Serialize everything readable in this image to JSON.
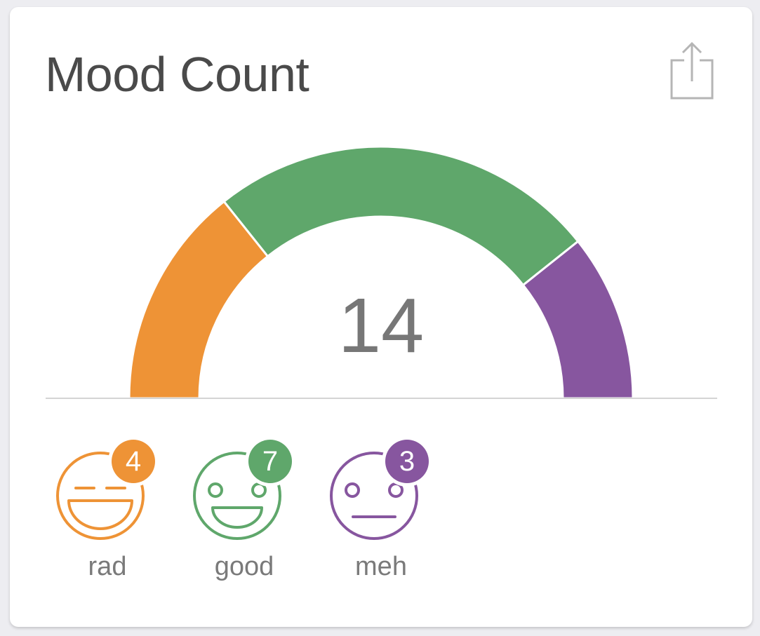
{
  "card": {
    "title": "Mood Count",
    "share_icon": "share-icon"
  },
  "chart_data": {
    "type": "gauge",
    "total": "14",
    "segments": [
      {
        "name": "rad",
        "value": 4,
        "color": "#ee9336"
      },
      {
        "name": "good",
        "value": 7,
        "color": "#5fa76b"
      },
      {
        "name": "meh",
        "value": 3,
        "color": "#87569f"
      }
    ]
  },
  "moods": [
    {
      "label": "rad",
      "count": "4",
      "color": "#ee9336",
      "icon": "rad-face-icon"
    },
    {
      "label": "good",
      "count": "7",
      "color": "#5fa76b",
      "icon": "good-face-icon"
    },
    {
      "label": "meh",
      "count": "3",
      "color": "#87569f",
      "icon": "meh-face-icon"
    }
  ],
  "colors": {
    "text_primary": "#4a4a4a",
    "text_secondary": "#7a7a7a",
    "divider": "#d4d4d4",
    "icon_gray": "#b5b5b5"
  }
}
